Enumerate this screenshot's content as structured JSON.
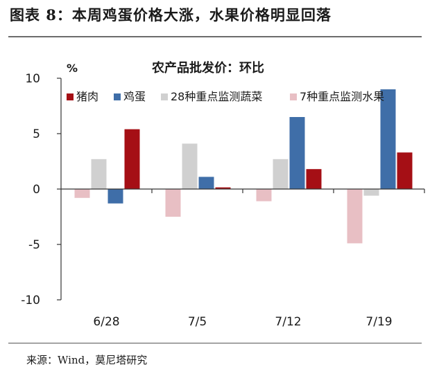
{
  "figure": {
    "title": "图表 8：本周鸡蛋价格大涨，水果价格明显回落",
    "source": "来源：Wind，莫尼塔研究"
  },
  "chart_data": {
    "type": "bar",
    "title": "农产品批发价：环比",
    "ylabel": "%",
    "ylim": [
      -10,
      10
    ],
    "yticks": [
      10,
      5,
      0,
      -5,
      -10
    ],
    "ytick_labels": [
      "10",
      "5",
      "0",
      "-5",
      "-10"
    ],
    "categories": [
      "6/28",
      "7/5",
      "7/12",
      "7/19"
    ],
    "legend_position": "top",
    "series": [
      {
        "name": "猪肉",
        "color": "#a50f15",
        "values": [
          5.4,
          0.15,
          1.8,
          3.3
        ]
      },
      {
        "name": "鸡蛋",
        "color": "#3f6ea8",
        "values": [
          -1.3,
          1.1,
          6.5,
          9.0
        ]
      },
      {
        "name": "28种重点监测蔬菜",
        "color": "#d0d0d0",
        "values": [
          2.7,
          4.1,
          2.7,
          -0.6
        ]
      },
      {
        "name": "7种重点监测水果",
        "color": "#e8bfc4",
        "values": [
          -0.8,
          -2.5,
          -1.1,
          -4.9
        ]
      }
    ]
  }
}
